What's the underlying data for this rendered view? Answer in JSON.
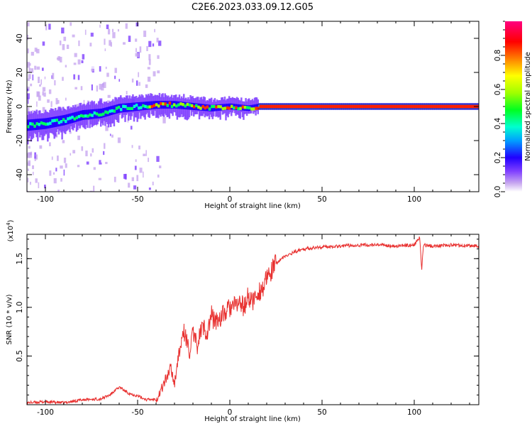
{
  "title": "C2E6.2023.033.09.12.G05",
  "colorbar": {
    "label": "Normalized spectral amplitude",
    "ticks": [
      "0.0",
      "0.2",
      "0.4",
      "0.6",
      "0.8"
    ],
    "tick_values": [
      0.0,
      0.2,
      0.4,
      0.6,
      0.8
    ],
    "range": [
      0,
      1
    ],
    "colors": [
      "#ffffff",
      "#c8a8f0",
      "#8040ff",
      "#2000ff",
      "#00a0ff",
      "#00ffd0",
      "#00ff20",
      "#a0ff00",
      "#ffff00",
      "#ff8000",
      "#ff0000",
      "#ff0080"
    ]
  },
  "chart_data": [
    {
      "type": "heatmap",
      "name": "spectrogram",
      "xlabel": "Height of straight line (km)",
      "ylabel": "Frequency (Hz)",
      "xlim": [
        -110,
        135
      ],
      "ylim": [
        -50,
        50
      ],
      "xticks": [
        -100,
        -50,
        0,
        50,
        100
      ],
      "xtick_labels": [
        "-100",
        "-50",
        "0",
        "50",
        "100"
      ],
      "yticks": [
        -40,
        -20,
        0,
        20,
        40
      ],
      "ytick_labels": [
        "-40",
        "-20",
        "0",
        "20",
        "40"
      ],
      "ridge": {
        "x": [
          -110,
          -100,
          -90,
          -80,
          -70,
          -60,
          -50,
          -40,
          -30,
          -20,
          -10,
          0,
          10,
          15,
          30,
          60,
          100,
          135
        ],
        "frequency": [
          -11,
          -10,
          -8,
          -5,
          -4,
          -1,
          0,
          1,
          1,
          0,
          -1,
          0,
          -1,
          0,
          0,
          0,
          0,
          0
        ]
      }
    },
    {
      "type": "line",
      "name": "snr",
      "xlabel": "Height of straight line (km)",
      "ylabel": "SNR (10 * v/v)",
      "scale_label": "(x10",
      "scale_exp": "4",
      "scale_close": ")",
      "xlim": [
        -110,
        135
      ],
      "ylim": [
        0,
        1.75
      ],
      "xticks": [
        -100,
        -50,
        0,
        50,
        100
      ],
      "xtick_labels": [
        "-100",
        "-50",
        "0",
        "50",
        "100"
      ],
      "yticks": [
        0.5,
        1.0,
        1.5
      ],
      "ytick_labels": [
        "0.5",
        "1.0",
        "1.5"
      ],
      "series": [
        {
          "name": "SNR",
          "color": "#e8302f",
          "x": [
            -110,
            -100,
            -90,
            -80,
            -70,
            -65,
            -60,
            -55,
            -50,
            -45,
            -40,
            -38,
            -35,
            -32,
            -30,
            -28,
            -25,
            -22,
            -20,
            -18,
            -15,
            -12,
            -10,
            -8,
            -5,
            -2,
            0,
            2,
            5,
            8,
            10,
            12,
            15,
            18,
            20,
            23,
            25,
            28,
            30,
            35,
            40,
            45,
            50,
            60,
            70,
            80,
            90,
            100,
            103,
            104,
            105,
            110,
            120,
            135
          ],
          "values": [
            0.02,
            0.03,
            0.02,
            0.05,
            0.06,
            0.1,
            0.18,
            0.12,
            0.09,
            0.05,
            0.06,
            0.12,
            0.25,
            0.38,
            0.22,
            0.48,
            0.75,
            0.55,
            0.72,
            0.6,
            0.8,
            0.75,
            0.92,
            0.85,
            0.9,
            0.95,
            1.0,
            1.0,
            1.05,
            1.0,
            1.12,
            1.05,
            1.15,
            1.2,
            1.28,
            1.38,
            1.45,
            1.5,
            1.52,
            1.57,
            1.6,
            1.61,
            1.62,
            1.63,
            1.64,
            1.64,
            1.63,
            1.64,
            1.72,
            1.38,
            1.64,
            1.63,
            1.64,
            1.63
          ]
        }
      ]
    }
  ]
}
